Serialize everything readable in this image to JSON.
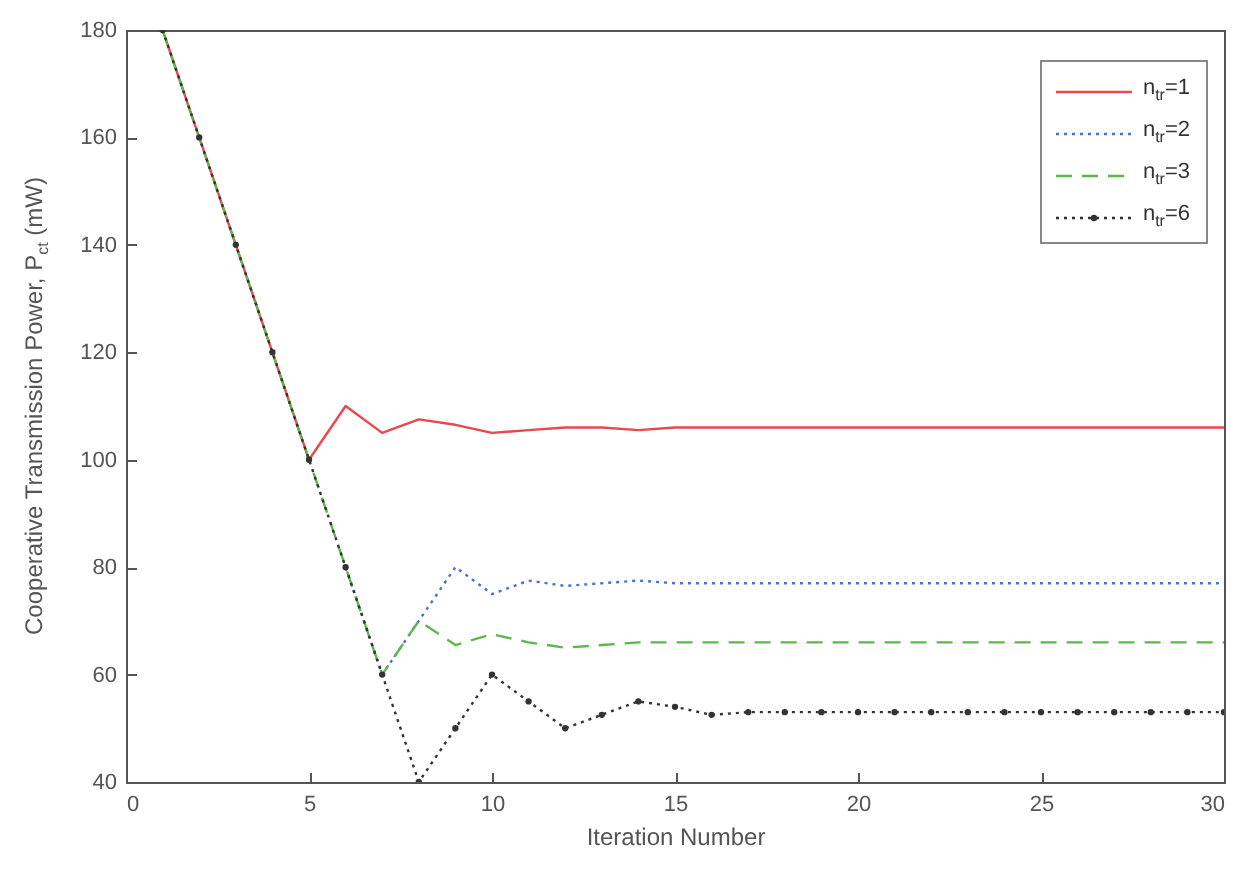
{
  "chart_data": {
    "type": "line",
    "xlabel": "Iteration Number",
    "ylabel": "Cooperative Transmission Power, P$_{ct}$ (mW)",
    "x": [
      1,
      2,
      3,
      4,
      5,
      6,
      7,
      8,
      9,
      10,
      11,
      12,
      13,
      14,
      15,
      16,
      17,
      18,
      19,
      20,
      21,
      22,
      23,
      24,
      25,
      26,
      27,
      28,
      29,
      30
    ],
    "xlim": [
      0,
      30
    ],
    "xticks": [
      0,
      5,
      10,
      15,
      20,
      25,
      30
    ],
    "ylim": [
      40,
      180
    ],
    "yticks": [
      40,
      60,
      80,
      100,
      120,
      140,
      160,
      180
    ],
    "grid": false,
    "legend": "top right",
    "series": [
      {
        "name": "n$_{tr}$=1",
        "color": "#e8484e",
        "line_style": "solid",
        "marker": "none",
        "values": [
          180,
          160,
          140,
          120,
          100,
          110,
          105,
          107.5,
          106.5,
          105,
          105.5,
          106,
          106,
          105.5,
          106,
          106,
          106,
          106,
          106,
          106,
          106,
          106,
          106,
          106,
          106,
          106,
          106,
          106,
          106,
          106
        ]
      },
      {
        "name": "n$_{tr}$=2",
        "color": "#4a6fd6",
        "line_style": "dotted",
        "marker": "none",
        "values": [
          null,
          null,
          null,
          null,
          null,
          80,
          60,
          70,
          80,
          75,
          77.5,
          76.5,
          77,
          77.5,
          77,
          77,
          77,
          77,
          77,
          77,
          77,
          77,
          77,
          77,
          77,
          77,
          77,
          77,
          77,
          77
        ]
      },
      {
        "name": "n$_{tr}$=3",
        "color": "#5cb84a",
        "line_style": "dashed",
        "marker": "none",
        "values": [
          180,
          160,
          140,
          120,
          100,
          80,
          60,
          70,
          65.5,
          67.5,
          66,
          65,
          65.5,
          66,
          66,
          66,
          66,
          66,
          66,
          66,
          66,
          66,
          66,
          66,
          66,
          66,
          66,
          66,
          66,
          66
        ]
      },
      {
        "name": "n$_{tr}$=6",
        "color": "#333333",
        "line_style": "dotted",
        "marker": "circle",
        "values": [
          180,
          160,
          140,
          120,
          100,
          80,
          60,
          40,
          50,
          60,
          55,
          50,
          52.5,
          55,
          54,
          52.5,
          53,
          53,
          53,
          53,
          53,
          53,
          53,
          53,
          53,
          53,
          53,
          53,
          53,
          53
        ]
      }
    ]
  }
}
